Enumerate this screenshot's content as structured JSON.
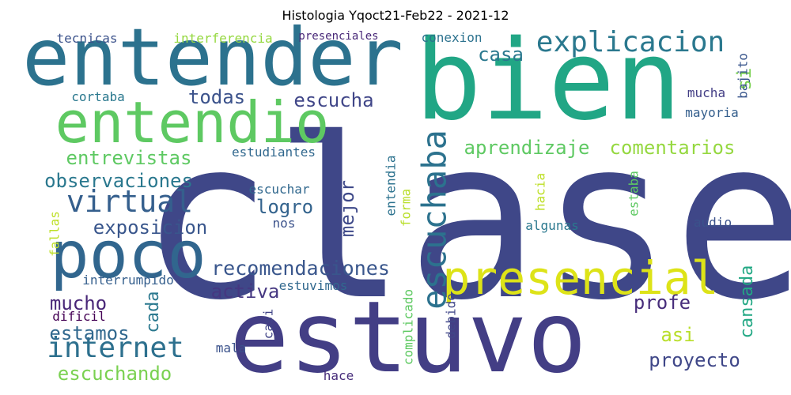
{
  "title": "Histologia Yqoct21-Feb22 - 2021-12",
  "words": [
    {
      "text": "clase",
      "color": "#3f4788"
    },
    {
      "text": "bien",
      "color": "#21a685"
    },
    {
      "text": "entender",
      "color": "#2c728e"
    },
    {
      "text": "estuvo",
      "color": "#433e85"
    },
    {
      "text": "entendio",
      "color": "#5ec962"
    },
    {
      "text": "poco",
      "color": "#31668e"
    },
    {
      "text": "presencial",
      "color": "#dde318"
    },
    {
      "text": "explicacion",
      "color": "#2a788e"
    },
    {
      "text": "escuchaba",
      "color": "#2c728e"
    },
    {
      "text": "internet",
      "color": "#2d708e"
    },
    {
      "text": "virtual",
      "color": "#355f8d"
    },
    {
      "text": "recomendaciones",
      "color": "#39568c"
    },
    {
      "text": "aprendizaje",
      "color": "#5ec962"
    },
    {
      "text": "comentarios",
      "color": "#95d840"
    },
    {
      "text": "entrevistas",
      "color": "#5ec962"
    },
    {
      "text": "observaciones",
      "color": "#2a788e"
    },
    {
      "text": "exposicion",
      "color": "#39568c"
    },
    {
      "text": "escuchando",
      "color": "#7ad151"
    },
    {
      "text": "estamos",
      "color": "#31688e"
    },
    {
      "text": "proyecto",
      "color": "#3f4788"
    },
    {
      "text": "activa",
      "color": "#453781"
    },
    {
      "text": "mucho",
      "color": "#482677"
    },
    {
      "text": "escucha",
      "color": "#404688"
    },
    {
      "text": "todas",
      "color": "#3b528b"
    },
    {
      "text": "casa",
      "color": "#2a788e"
    },
    {
      "text": "logro",
      "color": "#33638d"
    },
    {
      "text": "mejor",
      "color": "#3e4989"
    },
    {
      "text": "profe",
      "color": "#472d7b"
    },
    {
      "text": "cansada",
      "color": "#22a884"
    },
    {
      "text": "asi",
      "color": "#b8de29"
    },
    {
      "text": "cada",
      "color": "#2a788e"
    },
    {
      "text": "tecnicas",
      "color": "#3b528b"
    },
    {
      "text": "interferencia",
      "color": "#95d840"
    },
    {
      "text": "presenciales",
      "color": "#482878"
    },
    {
      "text": "conexion",
      "color": "#2c728e"
    },
    {
      "text": "si",
      "color": "#7ad151"
    },
    {
      "text": "bajito",
      "color": "#39568c"
    },
    {
      "text": "mucha",
      "color": "#433e85"
    },
    {
      "text": "mayoria",
      "color": "#355f8d"
    },
    {
      "text": "cortaba",
      "color": "#2a788e"
    },
    {
      "text": "estudiantes",
      "color": "#31688e"
    },
    {
      "text": "escuchar",
      "color": "#31688e"
    },
    {
      "text": "nos",
      "color": "#3b528b"
    },
    {
      "text": "entendia",
      "color": "#2c728e"
    },
    {
      "text": "forma",
      "color": "#b8de29"
    },
    {
      "text": "hacia",
      "color": "#bddf26"
    },
    {
      "text": "estaba",
      "color": "#5ec962"
    },
    {
      "text": "algunas",
      "color": "#2a788e"
    },
    {
      "text": "audio",
      "color": "#3b528b"
    },
    {
      "text": "fallas",
      "color": "#bddf26"
    },
    {
      "text": "interrumpido",
      "color": "#355f8d"
    },
    {
      "text": "estuvimos",
      "color": "#31688e"
    },
    {
      "text": "dificil",
      "color": "#440154"
    },
    {
      "text": "complicado",
      "color": "#5ec962"
    },
    {
      "text": "debido",
      "color": "#404688"
    },
    {
      "text": "casi",
      "color": "#414487"
    },
    {
      "text": "mala",
      "color": "#3b528b"
    },
    {
      "text": "hace",
      "color": "#472d7b"
    }
  ]
}
